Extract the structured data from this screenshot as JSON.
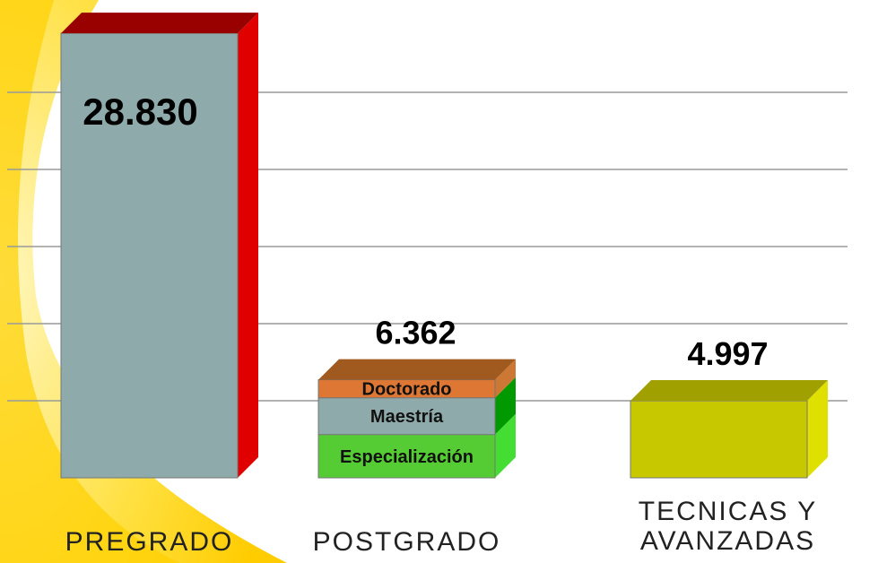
{
  "chart_data": {
    "type": "bar3d",
    "categories": [
      "PREGRADO",
      "POSTGRADO",
      "TECNICAS Y AVANZADAS"
    ],
    "values": [
      28830,
      6362,
      4997
    ],
    "value_labels": [
      "28.830",
      "6.362",
      "4.997"
    ],
    "colors": [
      "#8faaaa",
      "#55cc33",
      "#c8c800"
    ],
    "side_colors": [
      "#e00000",
      "#44dd33",
      "#e0e000"
    ],
    "top_colors": [
      "#990000",
      "#a05a20",
      "#a0a000"
    ],
    "segments": {
      "category": 1,
      "series": [
        {
          "name": "Especialización",
          "value": 2810,
          "color": "#55cc33",
          "side": "#44dd33"
        },
        {
          "name": "Maestría",
          "value": 2381,
          "color": "#8faaaa",
          "side": "#009900"
        },
        {
          "name": "Doctorado",
          "value": 1171,
          "color": "#dd7733",
          "side": "#cc7733"
        }
      ]
    },
    "ylim": [
      0,
      30000
    ],
    "yticks": [
      5000,
      10000,
      15000,
      20000,
      25000
    ],
    "grid": true
  }
}
